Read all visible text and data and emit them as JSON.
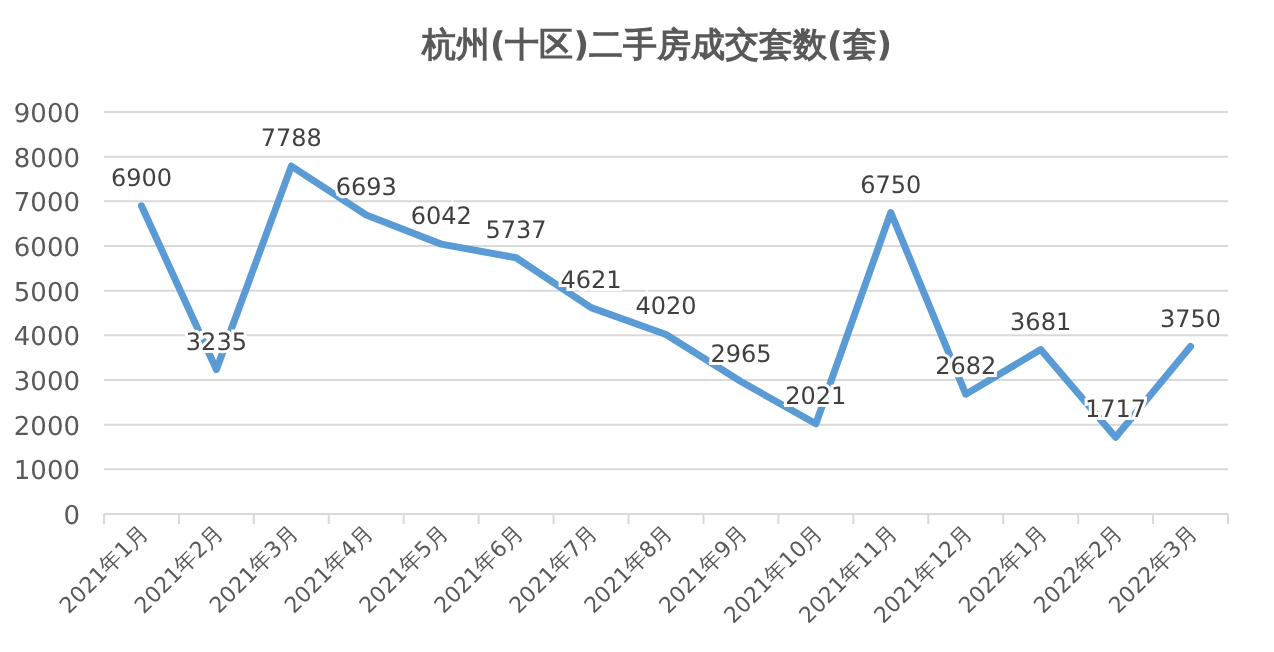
{
  "chart_data": {
    "type": "line",
    "title": "杭州(十区)二手房成交套数(套)",
    "categories": [
      "2021年1月",
      "2021年2月",
      "2021年3月",
      "2021年4月",
      "2021年5月",
      "2021年6月",
      "2021年7月",
      "2021年8月",
      "2021年9月",
      "2021年10月",
      "2021年11月",
      "2021年12月",
      "2022年1月",
      "2022年2月",
      "2022年3月"
    ],
    "series": [
      {
        "color": "#5b9bd5",
        "values": [
          6900,
          3235,
          7788,
          6693,
          6042,
          5737,
          4621,
          4020,
          2965,
          2021,
          6750,
          2682,
          3681,
          1717,
          3750
        ]
      }
    ],
    "ylim": [
      0,
      9000
    ],
    "yticks": [
      0,
      1000,
      2000,
      3000,
      4000,
      5000,
      6000,
      7000,
      8000,
      9000
    ],
    "grid": "y",
    "data_labels": true,
    "marker": "none",
    "line_style": "solid"
  }
}
